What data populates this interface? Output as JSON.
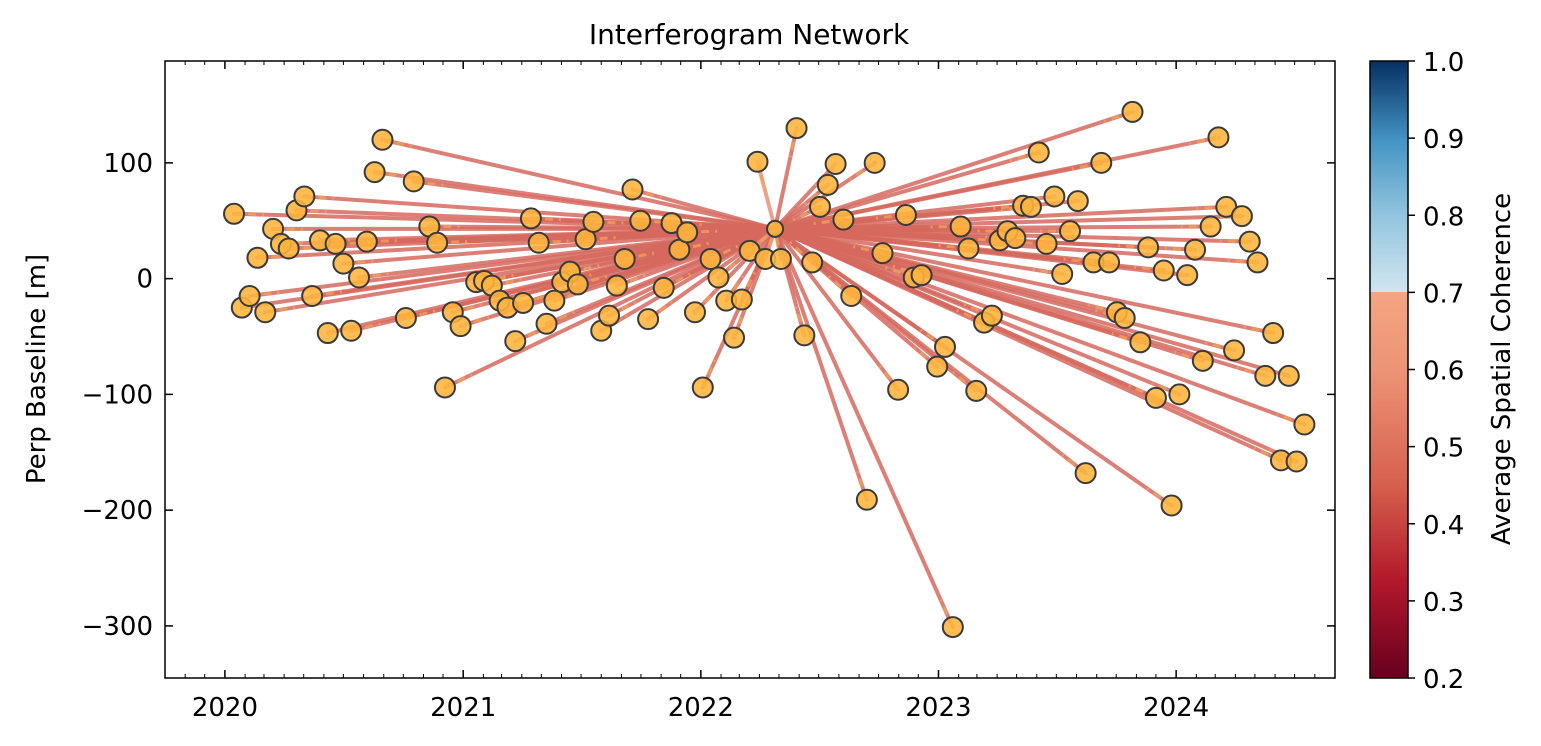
{
  "chart_data": {
    "type": "network",
    "title": "Interferogram Network",
    "xlabel": "",
    "ylabel": "Perp Baseline [m]",
    "colorbar_label": "Average Spatial Coherence",
    "x_axis_kind": "date",
    "xlim": [
      "2019-10-01",
      "2024-09-01"
    ],
    "ylim": [
      -345,
      188
    ],
    "x_ticks": [
      "2020-01-01",
      "2021-01-01",
      "2022-01-01",
      "2023-01-01",
      "2024-01-01"
    ],
    "x_tick_labels": [
      "2020",
      "2021",
      "2022",
      "2023",
      "2024"
    ],
    "y_ticks": [
      100,
      0,
      -100,
      -200,
      -300
    ],
    "y_tick_labels": [
      "100",
      "0",
      "−100",
      "−200",
      "−300"
    ],
    "colorbar_range": [
      0.2,
      1.0
    ],
    "colorbar_ticks": [
      1.0,
      0.9,
      0.8,
      0.7,
      0.6,
      0.5,
      0.4,
      0.3,
      0.2
    ],
    "colorbar_tick_labels": [
      "1.0",
      "0.9",
      "0.8",
      "0.7",
      "0.6",
      "0.5",
      "0.4",
      "0.3",
      "0.2"
    ],
    "colormap": "RdBu",
    "node_color": "#FFB43C",
    "node_edge_color": "#3A3A3A",
    "reference": {
      "date": "2022-04-25",
      "bperp": 43
    },
    "acquisitions": [
      {
        "date": "2020-01-15",
        "bperp": 56
      },
      {
        "date": "2020-01-27",
        "bperp": -25
      },
      {
        "date": "2020-02-08",
        "bperp": -15
      },
      {
        "date": "2020-02-20",
        "bperp": 18
      },
      {
        "date": "2020-03-03",
        "bperp": -29
      },
      {
        "date": "2020-03-15",
        "bperp": 43
      },
      {
        "date": "2020-03-27",
        "bperp": 30
      },
      {
        "date": "2020-04-08",
        "bperp": 26
      },
      {
        "date": "2020-04-20",
        "bperp": 59
      },
      {
        "date": "2020-05-02",
        "bperp": 71
      },
      {
        "date": "2020-05-14",
        "bperp": -15
      },
      {
        "date": "2020-05-26",
        "bperp": 33
      },
      {
        "date": "2020-06-07",
        "bperp": -47
      },
      {
        "date": "2020-06-19",
        "bperp": 30
      },
      {
        "date": "2020-07-01",
        "bperp": 13
      },
      {
        "date": "2020-07-13",
        "bperp": -45
      },
      {
        "date": "2020-07-25",
        "bperp": 1
      },
      {
        "date": "2020-08-06",
        "bperp": 32
      },
      {
        "date": "2020-08-18",
        "bperp": 92
      },
      {
        "date": "2020-08-30",
        "bperp": 120
      },
      {
        "date": "2020-10-05",
        "bperp": -34
      },
      {
        "date": "2020-10-17",
        "bperp": 84
      },
      {
        "date": "2020-11-10",
        "bperp": 45
      },
      {
        "date": "2020-11-22",
        "bperp": 31
      },
      {
        "date": "2020-12-04",
        "bperp": -94
      },
      {
        "date": "2020-12-16",
        "bperp": -29
      },
      {
        "date": "2020-12-28",
        "bperp": -41
      },
      {
        "date": "2021-01-21",
        "bperp": -3
      },
      {
        "date": "2021-02-02",
        "bperp": -2
      },
      {
        "date": "2021-02-14",
        "bperp": -6
      },
      {
        "date": "2021-02-26",
        "bperp": -19
      },
      {
        "date": "2021-03-10",
        "bperp": -25
      },
      {
        "date": "2021-03-22",
        "bperp": -54
      },
      {
        "date": "2021-04-03",
        "bperp": -21
      },
      {
        "date": "2021-04-15",
        "bperp": 52
      },
      {
        "date": "2021-04-27",
        "bperp": 31
      },
      {
        "date": "2021-05-09",
        "bperp": -39
      },
      {
        "date": "2021-05-21",
        "bperp": -19
      },
      {
        "date": "2021-06-02",
        "bperp": -3
      },
      {
        "date": "2021-06-14",
        "bperp": 6
      },
      {
        "date": "2021-06-26",
        "bperp": -5
      },
      {
        "date": "2021-07-08",
        "bperp": 34
      },
      {
        "date": "2021-07-20",
        "bperp": 49
      },
      {
        "date": "2021-08-01",
        "bperp": -45
      },
      {
        "date": "2021-08-13",
        "bperp": -32
      },
      {
        "date": "2021-08-25",
        "bperp": -6
      },
      {
        "date": "2021-09-06",
        "bperp": 17
      },
      {
        "date": "2021-09-18",
        "bperp": 77
      },
      {
        "date": "2021-09-30",
        "bperp": 50
      },
      {
        "date": "2021-10-12",
        "bperp": -35
      },
      {
        "date": "2021-11-05",
        "bperp": -8
      },
      {
        "date": "2021-11-17",
        "bperp": 48
      },
      {
        "date": "2021-11-29",
        "bperp": 25
      },
      {
        "date": "2021-12-11",
        "bperp": 40
      },
      {
        "date": "2021-12-23",
        "bperp": -29
      },
      {
        "date": "2022-01-04",
        "bperp": -94
      },
      {
        "date": "2022-01-16",
        "bperp": 17
      },
      {
        "date": "2022-01-28",
        "bperp": 1
      },
      {
        "date": "2022-02-09",
        "bperp": -19
      },
      {
        "date": "2022-02-21",
        "bperp": -51
      },
      {
        "date": "2022-03-05",
        "bperp": -18
      },
      {
        "date": "2022-03-17",
        "bperp": 24
      },
      {
        "date": "2022-03-29",
        "bperp": 101
      },
      {
        "date": "2022-04-10",
        "bperp": 17
      },
      {
        "date": "2022-05-04",
        "bperp": 17
      },
      {
        "date": "2022-05-28",
        "bperp": 130
      },
      {
        "date": "2022-06-09",
        "bperp": -49
      },
      {
        "date": "2022-06-21",
        "bperp": 14
      },
      {
        "date": "2022-07-03",
        "bperp": 62
      },
      {
        "date": "2022-07-15",
        "bperp": 81
      },
      {
        "date": "2022-07-27",
        "bperp": 99
      },
      {
        "date": "2022-08-08",
        "bperp": 51
      },
      {
        "date": "2022-08-20",
        "bperp": -15
      },
      {
        "date": "2022-09-13",
        "bperp": -191
      },
      {
        "date": "2022-09-25",
        "bperp": 100
      },
      {
        "date": "2022-10-07",
        "bperp": 22
      },
      {
        "date": "2022-10-31",
        "bperp": -96
      },
      {
        "date": "2022-11-12",
        "bperp": 55
      },
      {
        "date": "2022-11-24",
        "bperp": 1
      },
      {
        "date": "2022-12-06",
        "bperp": 3
      },
      {
        "date": "2022-12-30",
        "bperp": -76
      },
      {
        "date": "2023-01-11",
        "bperp": -59
      },
      {
        "date": "2023-01-23",
        "bperp": -301
      },
      {
        "date": "2023-02-04",
        "bperp": 45
      },
      {
        "date": "2023-02-16",
        "bperp": 26
      },
      {
        "date": "2023-02-28",
        "bperp": -97
      },
      {
        "date": "2023-03-12",
        "bperp": -38
      },
      {
        "date": "2023-03-24",
        "bperp": -32
      },
      {
        "date": "2023-04-05",
        "bperp": 33
      },
      {
        "date": "2023-04-17",
        "bperp": 41
      },
      {
        "date": "2023-04-29",
        "bperp": 35
      },
      {
        "date": "2023-05-11",
        "bperp": 63
      },
      {
        "date": "2023-05-23",
        "bperp": 62
      },
      {
        "date": "2023-06-04",
        "bperp": 109
      },
      {
        "date": "2023-06-16",
        "bperp": 30
      },
      {
        "date": "2023-06-28",
        "bperp": 71
      },
      {
        "date": "2023-07-10",
        "bperp": 4
      },
      {
        "date": "2023-07-22",
        "bperp": 41
      },
      {
        "date": "2023-08-03",
        "bperp": 67
      },
      {
        "date": "2023-08-15",
        "bperp": -168
      },
      {
        "date": "2023-08-27",
        "bperp": 14
      },
      {
        "date": "2023-09-08",
        "bperp": 100
      },
      {
        "date": "2023-09-20",
        "bperp": 14
      },
      {
        "date": "2023-10-02",
        "bperp": -29
      },
      {
        "date": "2023-10-14",
        "bperp": -34
      },
      {
        "date": "2023-10-26",
        "bperp": 144
      },
      {
        "date": "2023-11-07",
        "bperp": -55
      },
      {
        "date": "2023-11-19",
        "bperp": 27
      },
      {
        "date": "2023-12-01",
        "bperp": -103
      },
      {
        "date": "2023-12-13",
        "bperp": 7
      },
      {
        "date": "2023-12-25",
        "bperp": -196
      },
      {
        "date": "2024-01-06",
        "bperp": -100
      },
      {
        "date": "2024-01-18",
        "bperp": 3
      },
      {
        "date": "2024-01-30",
        "bperp": 25
      },
      {
        "date": "2024-02-11",
        "bperp": -71
      },
      {
        "date": "2024-02-23",
        "bperp": 45
      },
      {
        "date": "2024-03-06",
        "bperp": 122
      },
      {
        "date": "2024-03-18",
        "bperp": 62
      },
      {
        "date": "2024-03-30",
        "bperp": -62
      },
      {
        "date": "2024-04-11",
        "bperp": 54
      },
      {
        "date": "2024-04-23",
        "bperp": 32
      },
      {
        "date": "2024-05-05",
        "bperp": 14
      },
      {
        "date": "2024-05-17",
        "bperp": -84
      },
      {
        "date": "2024-05-29",
        "bperp": -47
      },
      {
        "date": "2024-06-10",
        "bperp": -157
      },
      {
        "date": "2024-06-22",
        "bperp": -84
      },
      {
        "date": "2024-07-04",
        "bperp": -158
      },
      {
        "date": "2024-07-16",
        "bperp": -126
      }
    ]
  }
}
